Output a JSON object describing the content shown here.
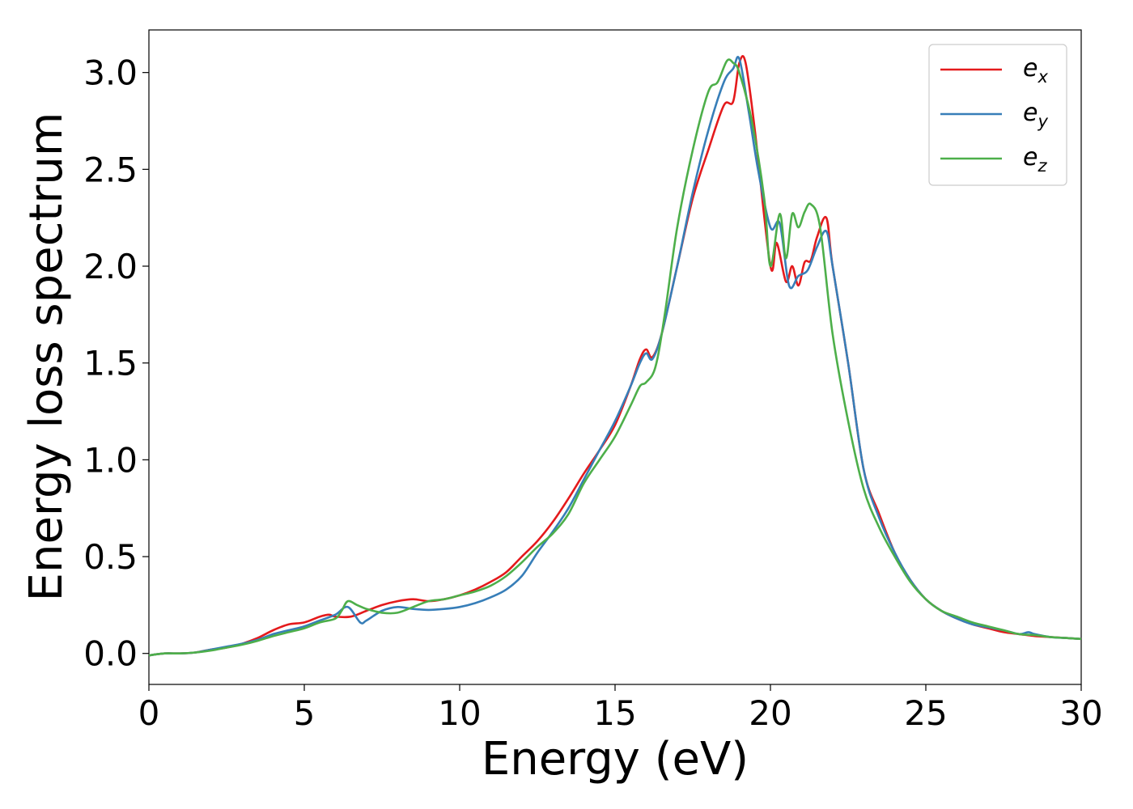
{
  "chart_data": {
    "type": "line",
    "title": "",
    "xlabel": "Energy (eV)",
    "ylabel": "Energy loss spectrum",
    "xlim": [
      0,
      30
    ],
    "ylim": [
      -0.16,
      3.22
    ],
    "x_ticks": [
      0,
      5,
      10,
      15,
      20,
      25,
      30
    ],
    "y_ticks": [
      0.0,
      0.5,
      1.0,
      1.5,
      2.0,
      2.5,
      3.0
    ],
    "x_tick_labels": [
      "0",
      "5",
      "10",
      "15",
      "20",
      "25",
      "30"
    ],
    "y_tick_labels": [
      "0.0",
      "0.5",
      "1.0",
      "1.5",
      "2.0",
      "2.5",
      "3.0"
    ],
    "grid": false,
    "legend_position": "top-right",
    "series": [
      {
        "name": "e",
        "subscript": "x",
        "color": "#e41a1c",
        "x": [
          0,
          0.5,
          1,
          1.5,
          2,
          2.5,
          3,
          3.5,
          4,
          4.5,
          5,
          5.5,
          5.8,
          6.0,
          6.5,
          7.0,
          7.5,
          8.0,
          8.5,
          9.0,
          9.5,
          10.0,
          10.5,
          11.0,
          11.5,
          12.0,
          12.5,
          13.0,
          13.5,
          14.0,
          14.5,
          15.0,
          15.5,
          15.8,
          16.0,
          16.2,
          16.5,
          17.0,
          17.5,
          18.0,
          18.5,
          18.8,
          19.0,
          19.2,
          19.5,
          20.0,
          20.2,
          20.5,
          20.7,
          20.9,
          21.1,
          21.3,
          21.5,
          21.8,
          22.0,
          22.5,
          23.0,
          23.5,
          24.0,
          24.5,
          25.0,
          25.5,
          26.0,
          26.5,
          27.0,
          27.5,
          28.0,
          28.5,
          29.0,
          29.5,
          30.0
        ],
        "y": [
          -0.01,
          0.0,
          0.0,
          0.005,
          0.02,
          0.03,
          0.05,
          0.08,
          0.12,
          0.15,
          0.16,
          0.19,
          0.2,
          0.19,
          0.19,
          0.22,
          0.25,
          0.27,
          0.28,
          0.27,
          0.28,
          0.3,
          0.33,
          0.37,
          0.42,
          0.5,
          0.58,
          0.68,
          0.8,
          0.93,
          1.05,
          1.18,
          1.38,
          1.52,
          1.57,
          1.53,
          1.65,
          2.0,
          2.35,
          2.6,
          2.83,
          2.85,
          3.05,
          3.05,
          2.7,
          2.0,
          2.12,
          1.92,
          2.0,
          1.9,
          2.02,
          2.03,
          2.15,
          2.25,
          2.0,
          1.5,
          0.95,
          0.72,
          0.52,
          0.38,
          0.28,
          0.22,
          0.18,
          0.15,
          0.13,
          0.11,
          0.1,
          0.09,
          0.085,
          0.08,
          0.075
        ]
      },
      {
        "name": "e",
        "subscript": "y",
        "color": "#377eb8",
        "x": [
          0,
          0.5,
          1,
          1.5,
          2,
          2.5,
          3,
          3.5,
          4,
          4.5,
          5,
          5.5,
          6.0,
          6.4,
          6.8,
          7.0,
          7.5,
          8.0,
          8.5,
          9.0,
          9.5,
          10.0,
          10.5,
          11.0,
          11.5,
          12.0,
          12.5,
          13.0,
          13.5,
          14.0,
          14.5,
          15.0,
          15.5,
          15.8,
          16.0,
          16.2,
          16.5,
          17.0,
          17.5,
          18.0,
          18.5,
          18.8,
          19.0,
          19.3,
          19.6,
          20.0,
          20.3,
          20.6,
          20.9,
          21.2,
          21.5,
          21.8,
          22.0,
          22.5,
          23.0,
          23.5,
          24.0,
          24.5,
          25.0,
          25.5,
          26.0,
          26.5,
          27.0,
          27.5,
          28.0,
          28.3,
          28.5,
          29.0,
          29.5,
          30.0
        ],
        "y": [
          -0.01,
          0.0,
          0.0,
          0.005,
          0.02,
          0.035,
          0.05,
          0.07,
          0.1,
          0.12,
          0.14,
          0.17,
          0.2,
          0.24,
          0.16,
          0.17,
          0.22,
          0.24,
          0.23,
          0.225,
          0.23,
          0.24,
          0.26,
          0.29,
          0.33,
          0.4,
          0.52,
          0.63,
          0.75,
          0.9,
          1.05,
          1.2,
          1.38,
          1.5,
          1.55,
          1.52,
          1.65,
          2.0,
          2.38,
          2.7,
          2.95,
          3.02,
          3.07,
          2.8,
          2.5,
          2.2,
          2.22,
          1.9,
          1.95,
          1.98,
          2.1,
          2.18,
          2.0,
          1.5,
          0.95,
          0.7,
          0.52,
          0.38,
          0.28,
          0.22,
          0.18,
          0.15,
          0.135,
          0.12,
          0.1,
          0.11,
          0.1,
          0.085,
          0.08,
          0.075
        ]
      },
      {
        "name": "e",
        "subscript": "z",
        "color": "#4daf4a",
        "x": [
          0,
          0.5,
          1,
          1.5,
          2,
          2.5,
          3,
          3.5,
          4,
          4.5,
          5,
          5.5,
          6.0,
          6.2,
          6.4,
          6.7,
          7.0,
          7.5,
          8.0,
          8.5,
          9.0,
          9.5,
          10.0,
          10.5,
          11.0,
          11.5,
          12.0,
          12.5,
          13.0,
          13.5,
          14.0,
          14.5,
          15.0,
          15.5,
          15.8,
          16.0,
          16.3,
          16.6,
          17.0,
          17.5,
          18.0,
          18.3,
          18.6,
          18.8,
          19.0,
          19.4,
          19.8,
          20.0,
          20.3,
          20.5,
          20.7,
          20.9,
          21.1,
          21.3,
          21.6,
          22.0,
          22.5,
          23.0,
          23.5,
          24.0,
          24.5,
          25.0,
          25.5,
          26.0,
          26.5,
          27.0,
          27.5,
          28.0,
          28.5,
          29.0,
          29.5,
          30.0
        ],
        "y": [
          -0.01,
          0.0,
          0.0,
          0.005,
          0.015,
          0.03,
          0.045,
          0.065,
          0.09,
          0.11,
          0.13,
          0.16,
          0.18,
          0.22,
          0.27,
          0.25,
          0.23,
          0.21,
          0.21,
          0.24,
          0.27,
          0.28,
          0.3,
          0.32,
          0.35,
          0.4,
          0.47,
          0.55,
          0.62,
          0.72,
          0.88,
          1.0,
          1.12,
          1.28,
          1.38,
          1.4,
          1.48,
          1.75,
          2.2,
          2.6,
          2.9,
          2.95,
          3.06,
          3.05,
          3.0,
          2.75,
          2.35,
          2.0,
          2.27,
          2.04,
          2.27,
          2.2,
          2.28,
          2.32,
          2.2,
          1.65,
          1.2,
          0.85,
          0.65,
          0.5,
          0.37,
          0.28,
          0.22,
          0.19,
          0.16,
          0.14,
          0.12,
          0.1,
          0.095,
          0.085,
          0.08,
          0.075
        ]
      }
    ]
  }
}
